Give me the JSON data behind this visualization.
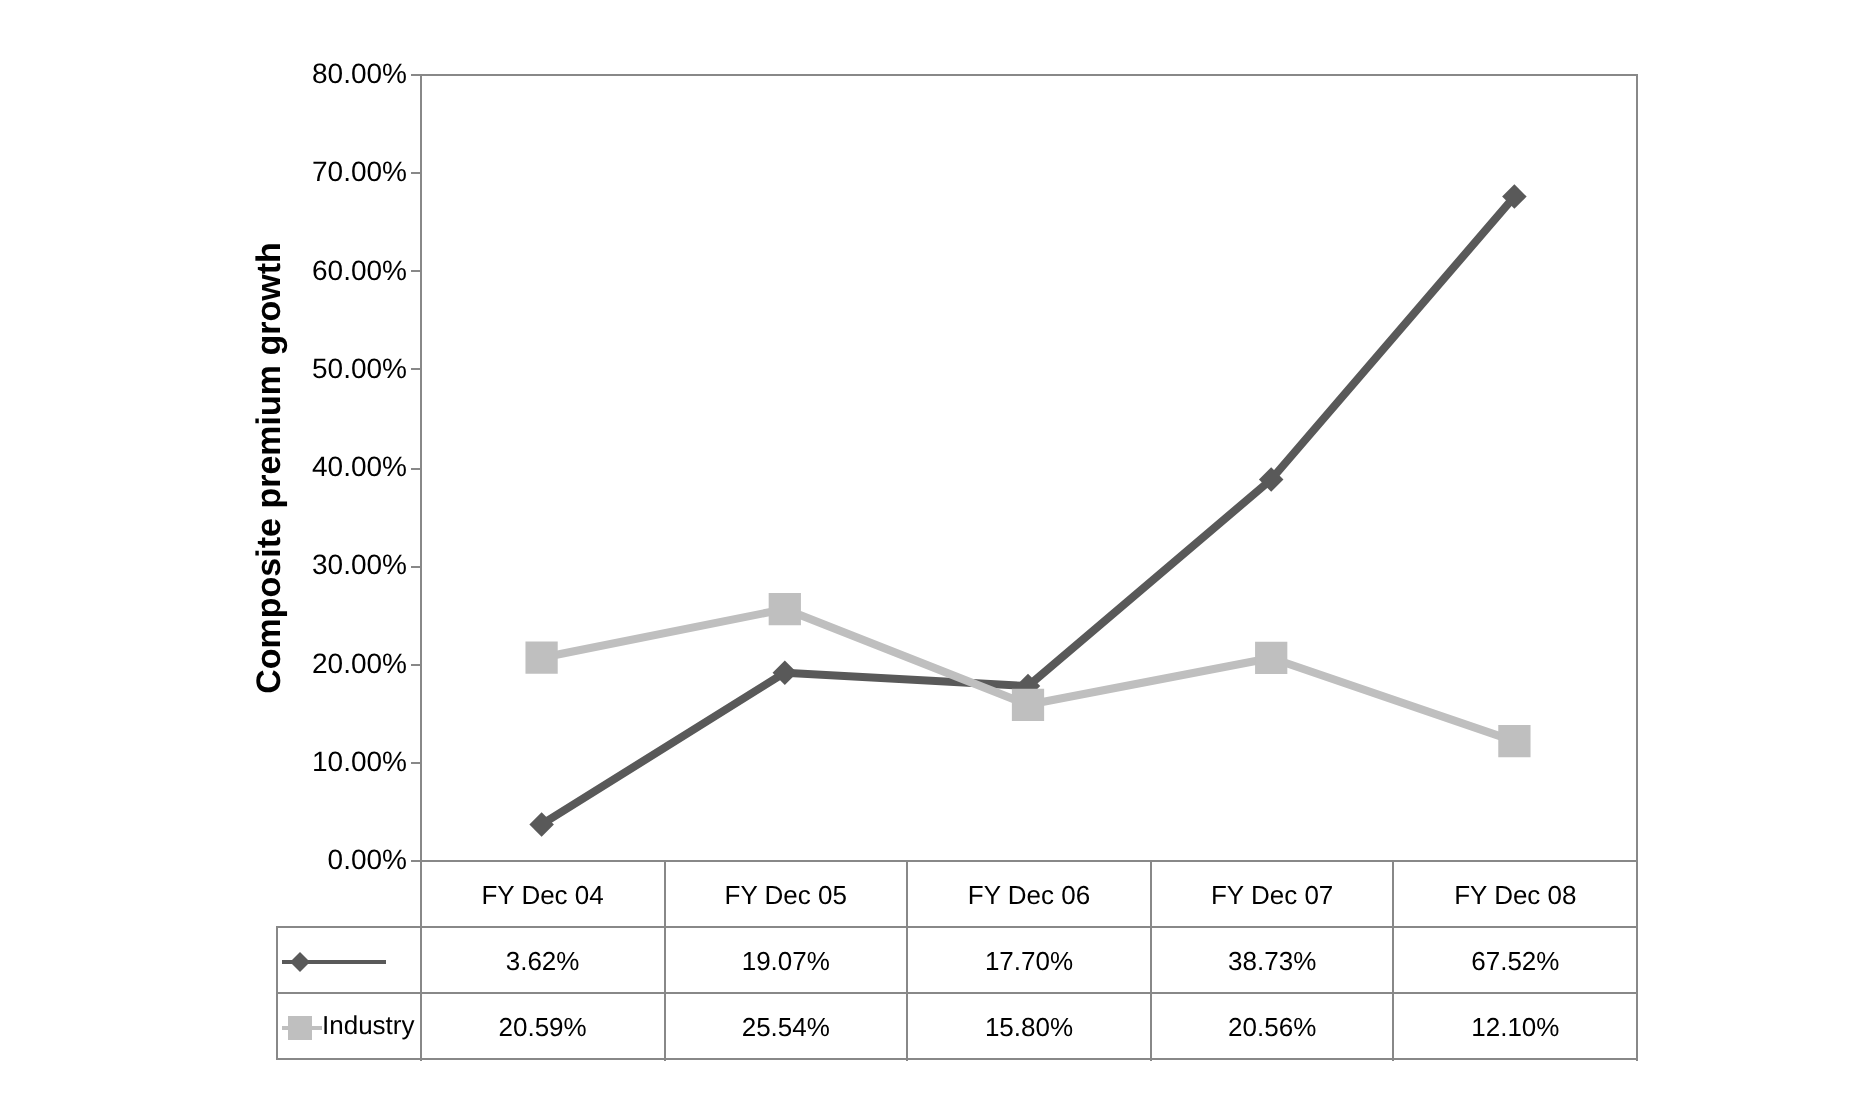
{
  "chart_data": {
    "type": "line",
    "ylabel": "Composite premium growth",
    "categories": [
      "FY Dec 04",
      "FY Dec 05",
      "FY Dec 06",
      "FY Dec 07",
      "FY Dec 08"
    ],
    "series": [
      {
        "color": "#595959",
        "marker": "diamond",
        "values": [
          3.62,
          19.07,
          17.7,
          38.73,
          67.52
        ],
        "value_labels": [
          "3.62%",
          "19.07%",
          "17.70%",
          "38.73%",
          "67.52%"
        ]
      },
      {
        "name": "Industry",
        "color": "#bfbfbf",
        "marker": "square",
        "values": [
          20.59,
          25.54,
          15.8,
          20.56,
          12.1
        ],
        "value_labels": [
          "20.59%",
          "25.54%",
          "15.80%",
          "20.56%",
          "12.10%"
        ]
      }
    ],
    "ylim": [
      0,
      80
    ],
    "yticks": [
      {
        "value": 0,
        "label": "0.00%"
      },
      {
        "value": 10,
        "label": "10.00%"
      },
      {
        "value": 20,
        "label": "20.00%"
      },
      {
        "value": 30,
        "label": "30.00%"
      },
      {
        "value": 40,
        "label": "40.00%"
      },
      {
        "value": 50,
        "label": "50.00%"
      },
      {
        "value": 60,
        "label": "60.00%"
      },
      {
        "value": 70,
        "label": "70.00%"
      },
      {
        "value": 80,
        "label": "80.00%"
      }
    ],
    "line_style": "solid"
  }
}
